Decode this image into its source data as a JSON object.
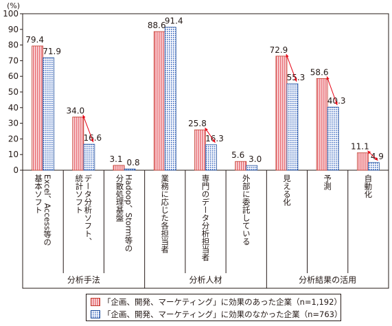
{
  "chart_data": {
    "type": "bar",
    "y_unit": "(%)",
    "ylim": [
      0,
      100
    ],
    "yticks": [
      0,
      10,
      20,
      30,
      40,
      50,
      60,
      70,
      80,
      90,
      100
    ],
    "categories": [
      "Excel、Access等の基本ソフト",
      "データ分析ソフト、統計ソフト",
      "Hadoop、Storm等の分散処理基盤",
      "業務に応じた各担当者",
      "専門のデータ分析担当者",
      "外部に委託している",
      "見える化",
      "予測",
      "自動化"
    ],
    "category_label_columns": [
      [
        "Excel、Access等の",
        "基本ソフト"
      ],
      [
        "データ分析ソフト、",
        "統計ソフト"
      ],
      [
        "Hadoop、Storm等の",
        "分散処理基盤"
      ],
      [
        "業務に応じた各担当者"
      ],
      [
        "専門のデータ分析担当者"
      ],
      [
        "外部に委託している"
      ],
      [
        "見える化"
      ],
      [
        "予測"
      ],
      [
        "自動化"
      ]
    ],
    "groups": [
      {
        "label": "分析手法",
        "categories": [
          0,
          1,
          2
        ]
      },
      {
        "label": "分析人材",
        "categories": [
          3,
          4,
          5
        ]
      },
      {
        "label": "分析結果の活用",
        "categories": [
          6,
          7,
          8
        ]
      }
    ],
    "series": [
      {
        "name": "「企画、開発、マーケティング」に効果のあった企業（n=1,192）",
        "values": [
          79.4,
          34.0,
          3.1,
          88.6,
          25.8,
          5.6,
          72.9,
          58.6,
          11.1
        ],
        "labels": [
          "79.4",
          "34.0",
          "3.1",
          "88.6",
          "25.8",
          "5.6",
          "72.9",
          "58.6",
          "11.1"
        ],
        "color": "#e8737a"
      },
      {
        "name": "「企画、開発、マーケティング」に効果のなかった企業（n=763）",
        "values": [
          71.9,
          16.6,
          0.8,
          91.4,
          16.3,
          3.0,
          55.3,
          40.3,
          4.9
        ],
        "labels": [
          "71.9",
          "16.6",
          "0.8",
          "91.4",
          "16.3",
          "3.0",
          "55.3",
          "40.3",
          "4.9"
        ],
        "color": "#3e6bc2"
      }
    ],
    "arrows": [
      1,
      4,
      6,
      7,
      8
    ],
    "arrow_color": "#e60012",
    "legend_position": "bottom"
  }
}
